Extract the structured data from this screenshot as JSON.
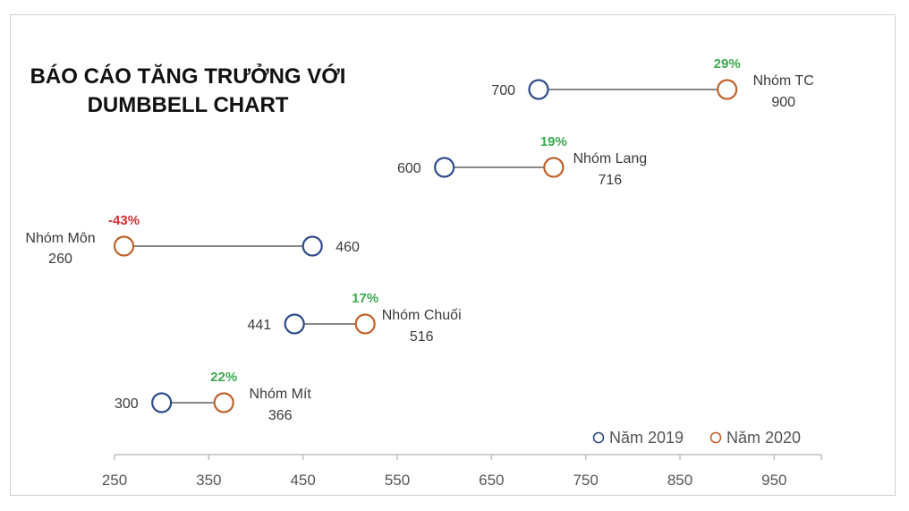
{
  "chart_data": {
    "type": "dumbbell",
    "title_lines": [
      "BÁO CÁO TĂNG TRƯỞNG VỚI",
      "DUMBBELL CHART"
    ],
    "xlim": [
      250,
      1000
    ],
    "x_ticks": [
      "250",
      "350",
      "450",
      "550",
      "650",
      "750",
      "850",
      "950"
    ],
    "grid": false,
    "legend_position": "bottom-right",
    "series": [
      {
        "name": "Năm 2019",
        "color": "#2f4b8a"
      },
      {
        "name": "Năm 2020",
        "color": "#c0622a"
      }
    ],
    "rows": [
      {
        "group": "Nhóm TC",
        "v2019": 700,
        "v2020": 900,
        "label2019": "700",
        "label2020": "900",
        "change": "29%",
        "change_color": "#3aa94f"
      },
      {
        "group": "Nhóm Lang",
        "v2019": 600,
        "v2020": 716,
        "label2019": "600",
        "label2020": "716",
        "change": "19%",
        "change_color": "#3aa94f"
      },
      {
        "group": "Nhóm Môn",
        "v2019": 460,
        "v2020": 260,
        "label2019": "460",
        "label2020": "260",
        "change": "-43%",
        "change_color": "#d32f2f"
      },
      {
        "group": "Nhóm Chuối",
        "v2019": 441,
        "v2020": 516,
        "label2019": "441",
        "label2020": "516",
        "change": "17%",
        "change_color": "#3aa94f"
      },
      {
        "group": "Nhóm Mít",
        "v2019": 300,
        "v2020": 366,
        "label2019": "300",
        "label2020": "366",
        "change": "22%",
        "change_color": "#3aa94f"
      }
    ]
  }
}
